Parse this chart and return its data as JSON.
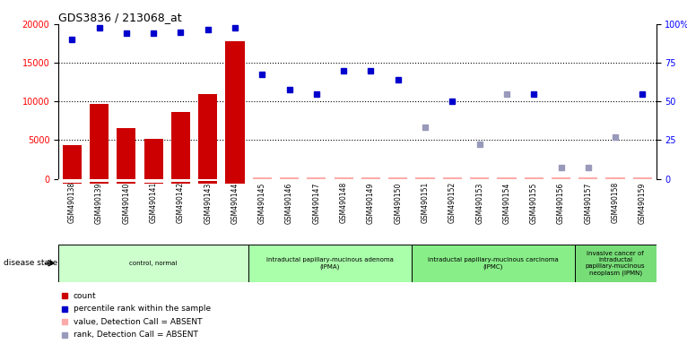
{
  "title": "GDS3836 / 213068_at",
  "samples": [
    "GSM490138",
    "GSM490139",
    "GSM490140",
    "GSM490141",
    "GSM490142",
    "GSM490143",
    "GSM490144",
    "GSM490145",
    "GSM490146",
    "GSM490147",
    "GSM490148",
    "GSM490149",
    "GSM490150",
    "GSM490151",
    "GSM490152",
    "GSM490153",
    "GSM490154",
    "GSM490155",
    "GSM490156",
    "GSM490157",
    "GSM490158",
    "GSM490159"
  ],
  "count_values": [
    4400,
    9700,
    6600,
    5200,
    8700,
    11000,
    17800,
    200,
    200,
    200,
    200,
    200,
    200,
    200,
    200,
    200,
    200,
    200,
    200,
    200,
    200,
    200
  ],
  "count_absent": [
    false,
    false,
    false,
    false,
    false,
    false,
    false,
    true,
    true,
    true,
    true,
    true,
    true,
    true,
    true,
    true,
    true,
    true,
    true,
    true,
    true,
    true
  ],
  "percentile_values": [
    18000,
    19500,
    18800,
    18800,
    19000,
    19300,
    19500,
    13500,
    11500,
    11000,
    14000,
    14000,
    12800,
    null,
    10000,
    null,
    null,
    11000,
    null,
    null,
    null,
    11000
  ],
  "percentile_absent": [
    false,
    false,
    false,
    false,
    false,
    false,
    false,
    false,
    false,
    false,
    false,
    false,
    false,
    true,
    false,
    true,
    true,
    false,
    true,
    true,
    true,
    false
  ],
  "rank_absent_values": [
    null,
    null,
    null,
    null,
    null,
    null,
    null,
    null,
    null,
    null,
    null,
    null,
    null,
    6700,
    null,
    4500,
    11000,
    null,
    1500,
    1500,
    5400,
    null
  ],
  "ylim_left": [
    0,
    20000
  ],
  "ylim_right": [
    0,
    100
  ],
  "yticks_left": [
    0,
    5000,
    10000,
    15000,
    20000
  ],
  "yticks_right": [
    0,
    25,
    50,
    75,
    100
  ],
  "groups": [
    {
      "label": "control, normal",
      "start": 0,
      "end": 7,
      "color": "#ccffcc"
    },
    {
      "label": "intraductal papillary-mucinous adenoma\n(IPMA)",
      "start": 7,
      "end": 13,
      "color": "#aaffaa"
    },
    {
      "label": "intraductal papillary-mucinous carcinoma\n(IPMC)",
      "start": 13,
      "end": 19,
      "color": "#88ee88"
    },
    {
      "label": "invasive cancer of\nintraductal\npapillary-mucinous\nneoplasm (IPMN)",
      "start": 19,
      "end": 22,
      "color": "#77dd77"
    }
  ],
  "bar_color": "#cc0000",
  "bar_absent_color": "#ffaaaa",
  "dot_present_color": "#0000cc",
  "dot_absent_color": "#9999bb",
  "bg_color": "#c8c8c8",
  "disease_state_label": "disease state"
}
